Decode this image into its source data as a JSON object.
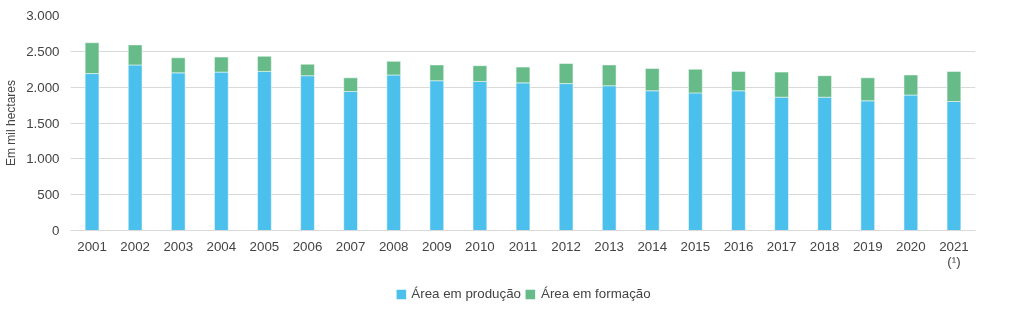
{
  "chart_data": {
    "type": "bar",
    "stacked": true,
    "ylabel": "Em mil hectares",
    "categories": [
      "2001",
      "2002",
      "2003",
      "2004",
      "2005",
      "2006",
      "2007",
      "2008",
      "2009",
      "2010",
      "2011",
      "2012",
      "2013",
      "2014",
      "2015",
      "2016",
      "2017",
      "2018",
      "2019",
      "2020",
      "2021\n(¹)"
    ],
    "series": [
      {
        "name": "Área em produção",
        "color": "#4bc0ec",
        "values": [
          2190,
          2310,
          2200,
          2210,
          2220,
          2160,
          1940,
          2170,
          2090,
          2080,
          2060,
          2050,
          2020,
          1950,
          1920,
          1950,
          1860,
          1860,
          1810,
          1890,
          1800
        ]
      },
      {
        "name": "Área em formação",
        "color": "#66bb88",
        "values": [
          430,
          280,
          210,
          210,
          210,
          160,
          190,
          190,
          220,
          220,
          220,
          280,
          290,
          310,
          330,
          270,
          350,
          300,
          320,
          280,
          420
        ]
      }
    ],
    "ylim": [
      0,
      3000
    ],
    "yticks": [
      {
        "value": 0,
        "label": "0"
      },
      {
        "value": 500,
        "label": "500"
      },
      {
        "value": 1000,
        "label": "1.000"
      },
      {
        "value": 1500,
        "label": "1.500"
      },
      {
        "value": 2000,
        "label": "2.000"
      },
      {
        "value": 2500,
        "label": "2.500"
      },
      {
        "value": 3000,
        "label": "3.000"
      }
    ],
    "grid": "y",
    "legend": "bottom"
  }
}
